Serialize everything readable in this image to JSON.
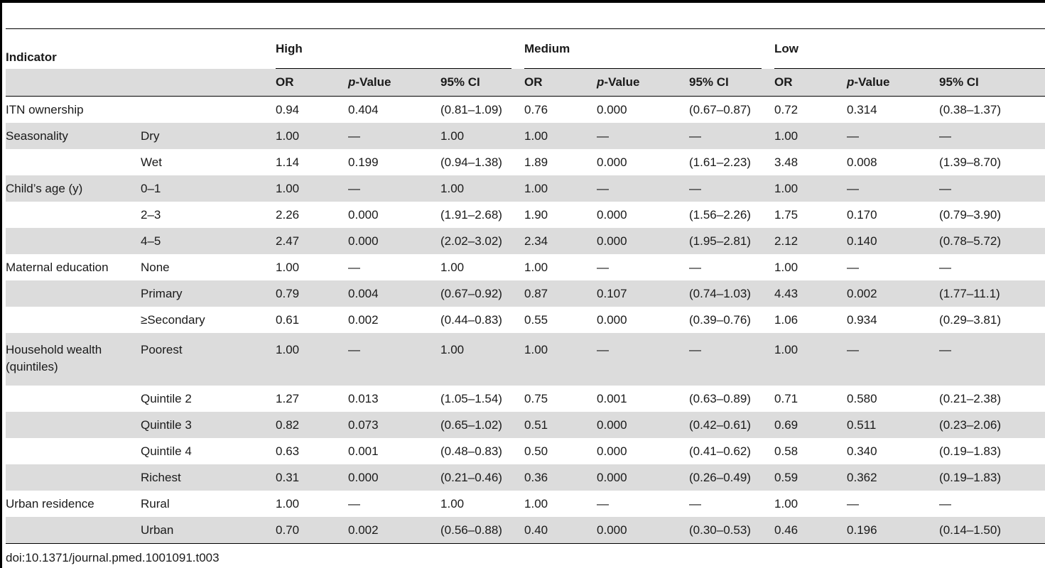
{
  "table": {
    "indicator_header": "Indicator",
    "groups": [
      "High",
      "Medium",
      "Low"
    ],
    "subheaders": [
      {
        "pre": "",
        "ital": "",
        "post": "OR"
      },
      {
        "pre": "",
        "ital": "p",
        "post": "-Value"
      },
      {
        "pre": "",
        "ital": "",
        "post": "95% CI"
      }
    ],
    "rows": [
      {
        "indicator": "ITN ownership",
        "level": "",
        "high_or": "0.94",
        "high_p": "0.404",
        "high_ci": "(0.81–1.09)",
        "med_or": "0.76",
        "med_p": "0.000",
        "med_ci": "(0.67–0.87)",
        "low_or": "0.72",
        "low_p": "0.314",
        "low_ci": "(0.38–1.37)"
      },
      {
        "indicator": "Seasonality",
        "level": "Dry",
        "high_or": "1.00",
        "high_p": "—",
        "high_ci": "1.00",
        "med_or": "1.00",
        "med_p": "—",
        "med_ci": "—",
        "low_or": "1.00",
        "low_p": "—",
        "low_ci": "—"
      },
      {
        "indicator": "",
        "level": "Wet",
        "high_or": "1.14",
        "high_p": "0.199",
        "high_ci": "(0.94–1.38)",
        "med_or": "1.89",
        "med_p": "0.000",
        "med_ci": "(1.61–2.23)",
        "low_or": "3.48",
        "low_p": "0.008",
        "low_ci": "(1.39–8.70)"
      },
      {
        "indicator": "Child’s age (y)",
        "level": "0–1",
        "high_or": "1.00",
        "high_p": "—",
        "high_ci": "1.00",
        "med_or": "1.00",
        "med_p": "—",
        "med_ci": "—",
        "low_or": "1.00",
        "low_p": "—",
        "low_ci": "—"
      },
      {
        "indicator": "",
        "level": "2–3",
        "high_or": "2.26",
        "high_p": "0.000",
        "high_ci": "(1.91–2.68)",
        "med_or": "1.90",
        "med_p": "0.000",
        "med_ci": "(1.56–2.26)",
        "low_or": "1.75",
        "low_p": "0.170",
        "low_ci": "(0.79–3.90)"
      },
      {
        "indicator": "",
        "level": "4–5",
        "high_or": "2.47",
        "high_p": "0.000",
        "high_ci": "(2.02–3.02)",
        "med_or": "2.34",
        "med_p": "0.000",
        "med_ci": "(1.95–2.81)",
        "low_or": "2.12",
        "low_p": "0.140",
        "low_ci": "(0.78–5.72)"
      },
      {
        "indicator": "Maternal education",
        "level": "None",
        "high_or": "1.00",
        "high_p": "—",
        "high_ci": "1.00",
        "med_or": "1.00",
        "med_p": "—",
        "med_ci": "—",
        "low_or": "1.00",
        "low_p": "—",
        "low_ci": "—"
      },
      {
        "indicator": "",
        "level": "Primary",
        "high_or": "0.79",
        "high_p": "0.004",
        "high_ci": "(0.67–0.92)",
        "med_or": "0.87",
        "med_p": "0.107",
        "med_ci": "(0.74–1.03)",
        "low_or": "4.43",
        "low_p": "0.002",
        "low_ci": "(1.77–11.1)"
      },
      {
        "indicator": "",
        "level": "≥Secondary",
        "high_or": "0.61",
        "high_p": "0.002",
        "high_ci": "(0.44–0.83)",
        "med_or": "0.55",
        "med_p": "0.000",
        "med_ci": "(0.39–0.76)",
        "low_or": "1.06",
        "low_p": "0.934",
        "low_ci": "(0.29–3.81)"
      },
      {
        "indicator": "Household wealth (quintiles)",
        "level": "Poorest",
        "high_or": "1.00",
        "high_p": "—",
        "high_ci": "1.00",
        "med_or": "1.00",
        "med_p": "—",
        "med_ci": "—",
        "low_or": "1.00",
        "low_p": "—",
        "low_ci": "—"
      },
      {
        "indicator": "",
        "level": "Quintile 2",
        "high_or": "1.27",
        "high_p": "0.013",
        "high_ci": "(1.05–1.54)",
        "med_or": "0.75",
        "med_p": "0.001",
        "med_ci": "(0.63–0.89)",
        "low_or": "0.71",
        "low_p": "0.580",
        "low_ci": "(0.21–2.38)"
      },
      {
        "indicator": "",
        "level": "Quintile 3",
        "high_or": "0.82",
        "high_p": "0.073",
        "high_ci": "(0.65–1.02)",
        "med_or": "0.51",
        "med_p": "0.000",
        "med_ci": "(0.42–0.61)",
        "low_or": "0.69",
        "low_p": "0.511",
        "low_ci": "(0.23–2.06)"
      },
      {
        "indicator": "",
        "level": "Quintile 4",
        "high_or": "0.63",
        "high_p": "0.001",
        "high_ci": "(0.48–0.83)",
        "med_or": "0.50",
        "med_p": "0.000",
        "med_ci": "(0.41–0.62)",
        "low_or": "0.58",
        "low_p": "0.340",
        "low_ci": "(0.19–1.83)"
      },
      {
        "indicator": "",
        "level": "Richest",
        "high_or": "0.31",
        "high_p": "0.000",
        "high_ci": "(0.21–0.46)",
        "med_or": "0.36",
        "med_p": "0.000",
        "med_ci": "(0.26–0.49)",
        "low_or": "0.59",
        "low_p": "0.362",
        "low_ci": "(0.19–1.83)"
      },
      {
        "indicator": "Urban residence",
        "level": "Rural",
        "high_or": "1.00",
        "high_p": "—",
        "high_ci": "1.00",
        "med_or": "1.00",
        "med_p": "—",
        "med_ci": "—",
        "low_or": "1.00",
        "low_p": "—",
        "low_ci": "—"
      },
      {
        "indicator": "",
        "level": "Urban",
        "high_or": "0.70",
        "high_p": "0.002",
        "high_ci": "(0.56–0.88)",
        "med_or": "0.40",
        "med_p": "0.000",
        "med_ci": "(0.30–0.53)",
        "low_or": "0.46",
        "low_p": "0.196",
        "low_ci": "(0.14–1.50)"
      }
    ]
  },
  "caption": "doi:10.1371/journal.pmed.1001091.t003"
}
